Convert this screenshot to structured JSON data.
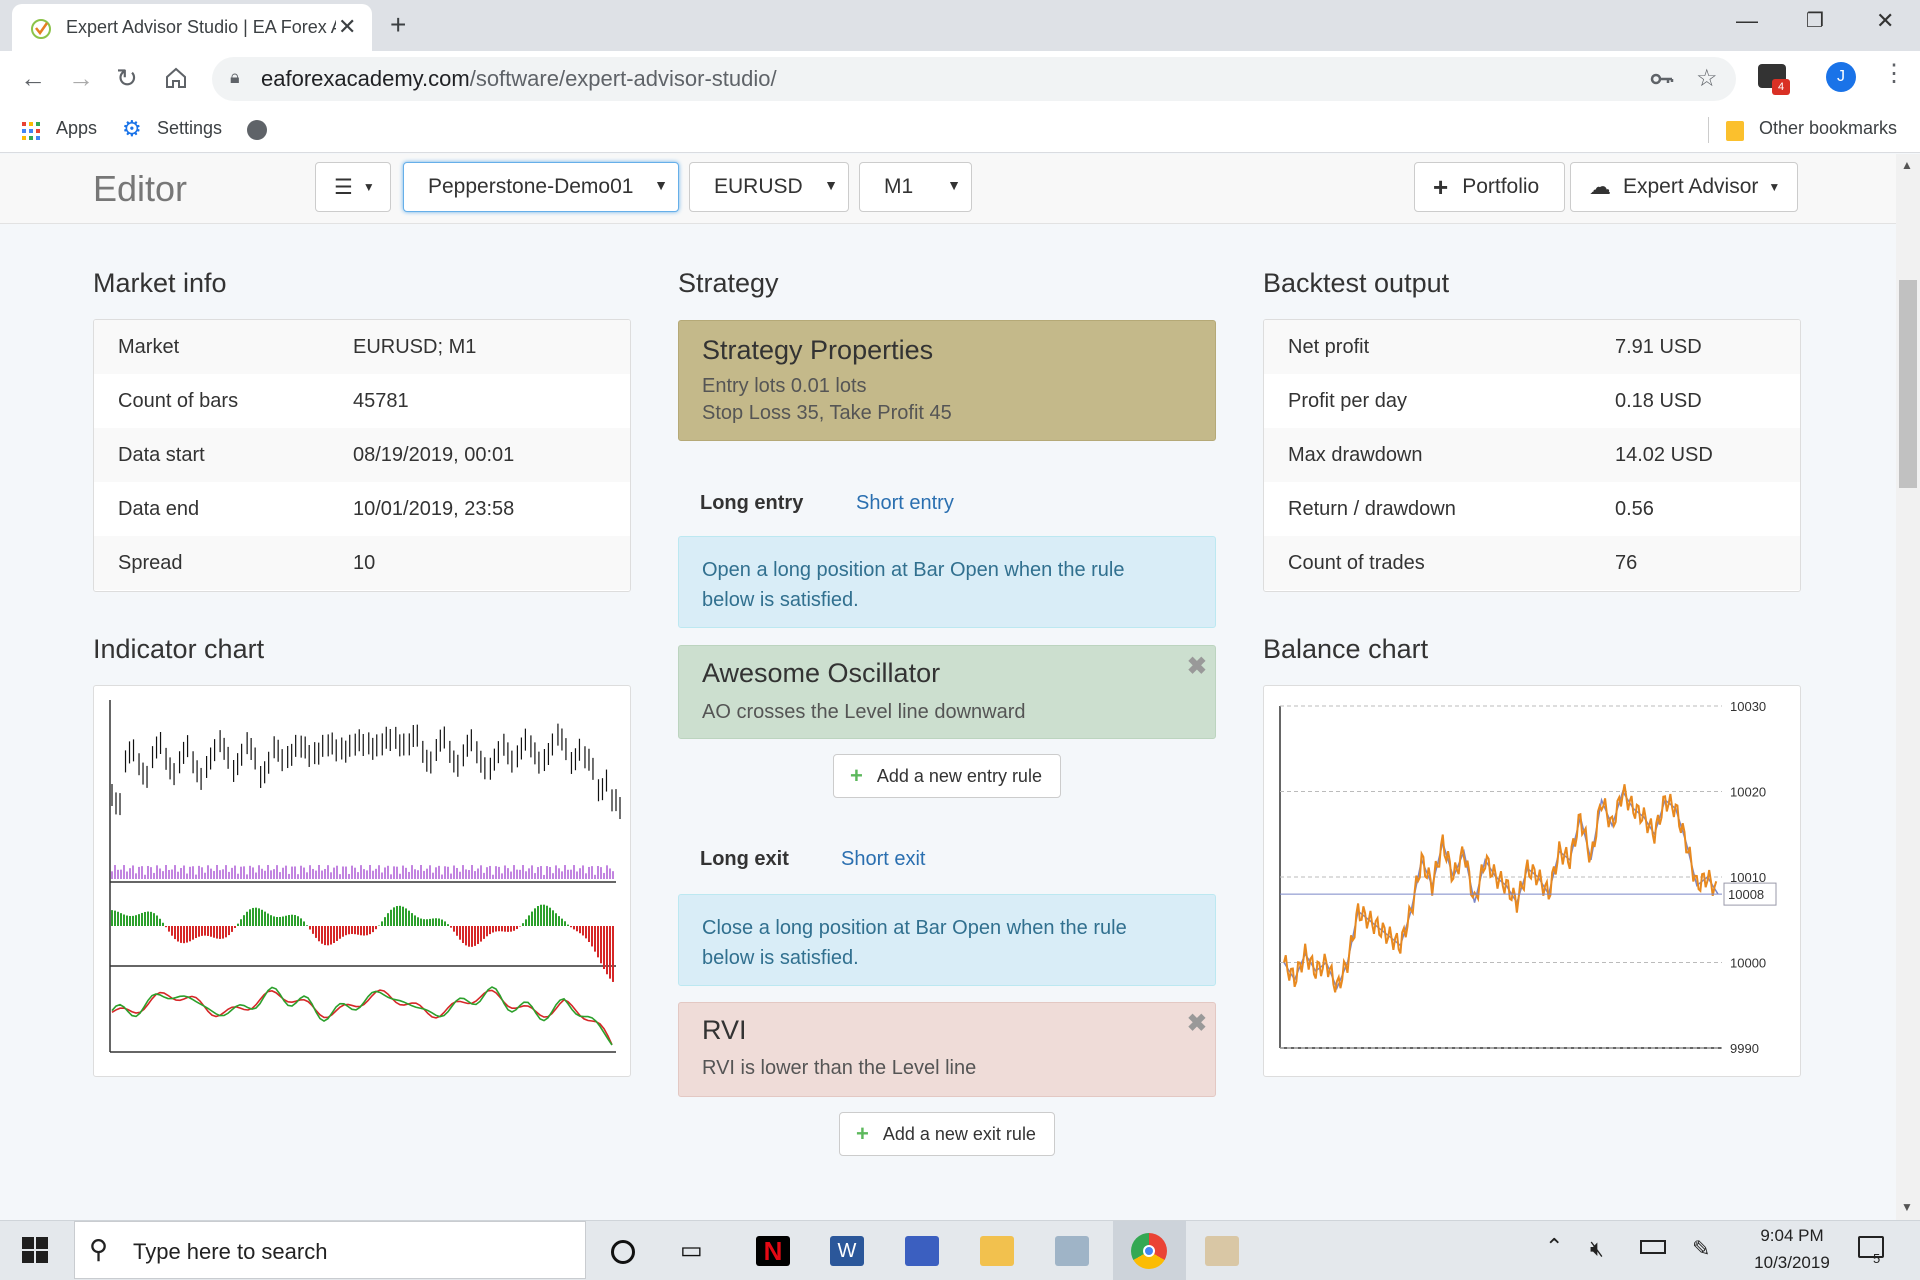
{
  "browser": {
    "tab_title": "Expert Advisor Studio | EA Forex Academy",
    "url_domain": "eaforexacademy.com",
    "url_path": "/software/expert-advisor-studio/",
    "profile_initial": "J",
    "extension_badge": "4",
    "bookmarks": {
      "apps": "Apps",
      "settings": "Settings",
      "other": "Other bookmarks"
    }
  },
  "editor": {
    "title": "Editor",
    "menu_label": "☰",
    "account": "Pepperstone-Demo01",
    "symbol": "EURUSD",
    "period": "M1",
    "portfolio_label": "Portfolio",
    "expert_advisor_label": "Expert Advisor"
  },
  "market_info": {
    "heading": "Market info",
    "rows": [
      {
        "label": "Market",
        "value": "EURUSD; M1"
      },
      {
        "label": "Count of bars",
        "value": "45781"
      },
      {
        "label": "Data start",
        "value": "08/19/2019, 00:01"
      },
      {
        "label": "Data end",
        "value": "10/01/2019, 23:58"
      },
      {
        "label": "Spread",
        "value": "10"
      }
    ]
  },
  "strategy": {
    "heading": "Strategy",
    "properties_title": "Strategy Properties",
    "properties_line1": "Entry lots 0.01 lots",
    "properties_line2": "Stop Loss 35, Take Profit 45",
    "long_entry_tab": "Long entry",
    "short_entry_tab": "Short entry",
    "entry_info": "Open a long position at Bar Open when the rule below is satisfied.",
    "entry_rule_title": "Awesome Oscillator",
    "entry_rule_desc": "AO crosses the Level line downward",
    "add_entry_label": "Add a new entry rule",
    "long_exit_tab": "Long exit",
    "short_exit_tab": "Short exit",
    "exit_info": "Close a long position at Bar Open when the rule below is satisfied.",
    "exit_rule_title": "RVI",
    "exit_rule_desc": "RVI is lower than the Level line",
    "add_exit_label": "Add a new exit rule"
  },
  "backtest": {
    "heading": "Backtest output",
    "rows": [
      {
        "label": "Net profit",
        "value": "7.91 USD"
      },
      {
        "label": "Profit per day",
        "value": "0.18 USD"
      },
      {
        "label": "Max drawdown",
        "value": "14.02 USD"
      },
      {
        "label": "Return / drawdown",
        "value": "0.56"
      },
      {
        "label": "Count of trades",
        "value": "76"
      }
    ]
  },
  "indicator_chart": {
    "heading": "Indicator chart"
  },
  "balance_chart": {
    "heading": "Balance chart",
    "current_label": "10008"
  },
  "chart_data": [
    {
      "type": "line",
      "name": "balance",
      "ylim": [
        9990,
        10030
      ],
      "y_ticks": [
        "10030",
        "10020",
        "10010",
        "10000",
        "9990"
      ],
      "current_value": 10008,
      "colors": {
        "balance": "#e8891f",
        "equity": "#7a86c8"
      },
      "values": [
        10000,
        9998,
        10001,
        9999,
        10000,
        9997,
        10000,
        10006,
        10005,
        10004,
        10003,
        10002,
        10006,
        10012,
        10009,
        10014,
        10010,
        10013,
        10007,
        10012,
        10010,
        10009,
        10007,
        10011,
        10010,
        10008,
        10013,
        10012,
        10017,
        10012,
        10019,
        10016,
        10020,
        10018,
        10017,
        10015,
        10019,
        10018,
        10014,
        10009,
        10010,
        10008
      ]
    },
    {
      "type": "line",
      "name": "indicator",
      "colors": {
        "bars": "#111111",
        "volume": "#9932cc",
        "up": "#2ca02c",
        "down": "#d62728"
      },
      "values": [
        30,
        55,
        50,
        60,
        52,
        58,
        48,
        56,
        62,
        54,
        60,
        50,
        57,
        64,
        58,
        66,
        60,
        68,
        62,
        70,
        64,
        72,
        66,
        60,
        64,
        58,
        62,
        56,
        54,
        60,
        64,
        58,
        62,
        66,
        60,
        50,
        40,
        20
      ]
    }
  ],
  "taskbar": {
    "search_placeholder": "Type here to search",
    "time": "9:04 PM",
    "date": "10/3/2019",
    "notif_count": "5"
  }
}
